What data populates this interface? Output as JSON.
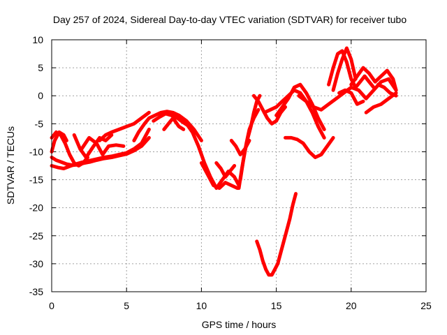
{
  "chart_data": {
    "type": "line",
    "title": "Day 257 of 2024, Sidereal Day-to-day VTEC variation (SDTVAR) for receiver tubo",
    "xlabel": "GPS time / hours",
    "ylabel": "SDTVAR / TECUs",
    "xlim": [
      0,
      25
    ],
    "ylim": [
      -35,
      10
    ],
    "xticks": [
      0,
      5,
      10,
      15,
      20,
      25
    ],
    "yticks": [
      -35,
      -30,
      -25,
      -20,
      -15,
      -10,
      -5,
      0,
      5,
      10
    ],
    "grid": true,
    "color": "#ff0000",
    "series": [
      {
        "x": [
          0.0,
          0.4,
          0.8,
          1.2,
          1.6,
          2.0,
          2.5,
          3.0,
          3.5,
          4.0,
          4.5,
          5.0,
          5.5,
          6.0,
          6.3,
          6.5
        ],
        "y": [
          -12.5,
          -12.8,
          -13.0,
          -12.6,
          -12.2,
          -11.9,
          -11.6,
          -11.3,
          -11.0,
          -10.8,
          -10.5,
          -10.2,
          -9.5,
          -8.5,
          -7.0,
          -6.0
        ]
      },
      {
        "x": [
          0.0,
          0.3,
          0.6,
          1.0,
          1.4,
          1.8,
          2.2,
          2.6,
          3.0,
          3.5,
          4.0,
          4.5,
          5.0,
          5.5,
          6.0,
          6.5
        ],
        "y": [
          -11.0,
          -11.5,
          -11.8,
          -12.2,
          -12.4,
          -12.3,
          -12.0,
          -11.8,
          -11.5,
          -11.2,
          -11.0,
          -10.7,
          -10.4,
          -9.8,
          -9.0,
          -7.5
        ]
      },
      {
        "x": [
          0.0,
          0.3,
          0.6,
          0.9,
          1.2,
          1.5,
          1.8,
          2.1,
          2.4
        ],
        "y": [
          -7.5,
          -6.5,
          -7.0,
          -8.5,
          -10.5,
          -12.0,
          -12.5,
          -12.0,
          -11.0
        ]
      },
      {
        "x": [
          0.0,
          0.2,
          0.5,
          0.8,
          1.0
        ],
        "y": [
          -10.0,
          -8.0,
          -6.5,
          -7.0,
          -8.0
        ]
      },
      {
        "x": [
          1.5,
          1.9,
          2.3,
          2.8,
          3.2,
          3.6,
          4.0
        ],
        "y": [
          -7.0,
          -9.5,
          -11.0,
          -9.0,
          -7.5,
          -8.0,
          -7.0
        ]
      },
      {
        "x": [
          2.0,
          2.5,
          3.0,
          3.4,
          3.8,
          4.3,
          4.8
        ],
        "y": [
          -9.5,
          -7.5,
          -8.5,
          -10.5,
          -9.0,
          -8.8,
          -9.0
        ]
      },
      {
        "x": [
          3.2,
          3.6,
          4.0,
          4.5,
          5.0,
          5.5,
          6.0,
          6.5
        ],
        "y": [
          -8.0,
          -7.0,
          -6.5,
          -6.0,
          -5.5,
          -5.0,
          -4.0,
          -3.0
        ]
      },
      {
        "x": [
          5.5,
          5.8,
          6.2,
          6.5,
          6.9,
          7.3,
          7.7,
          8.1,
          8.5,
          9.0,
          9.5,
          10.0
        ],
        "y": [
          -8.0,
          -6.5,
          -5.0,
          -4.0,
          -3.5,
          -3.0,
          -2.8,
          -3.0,
          -3.5,
          -4.5,
          -6.0,
          -8.0
        ]
      },
      {
        "x": [
          6.8,
          7.2,
          7.6,
          8.0,
          8.4,
          8.8,
          9.2
        ],
        "y": [
          -4.5,
          -3.8,
          -3.2,
          -3.5,
          -4.0,
          -4.8,
          -5.5
        ]
      },
      {
        "x": [
          7.5,
          7.8,
          8.1,
          8.5,
          8.8
        ],
        "y": [
          -6.0,
          -5.0,
          -4.0,
          -5.5,
          -6.0
        ]
      },
      {
        "x": [
          9.0,
          9.4,
          9.8,
          10.2,
          10.6,
          11.0,
          11.4,
          11.8,
          12.2,
          12.5
        ],
        "y": [
          -5.0,
          -6.5,
          -9.0,
          -12.0,
          -14.5,
          -16.5,
          -15.0,
          -13.5,
          -14.5,
          -16.0
        ]
      },
      {
        "x": [
          10.0,
          10.4,
          10.8,
          11.2,
          11.6,
          12.0,
          12.4
        ],
        "y": [
          -12.0,
          -14.0,
          -16.0,
          -16.5,
          -15.5,
          -16.0,
          -16.5
        ]
      },
      {
        "x": [
          11.0,
          11.3,
          11.6,
          11.9,
          12.2
        ],
        "y": [
          -12.0,
          -13.0,
          -14.5,
          -13.5,
          -12.5
        ]
      },
      {
        "x": [
          12.5,
          12.7,
          12.9,
          13.1,
          13.3,
          13.5,
          13.7,
          13.9
        ],
        "y": [
          -16.5,
          -13.0,
          -10.0,
          -7.5,
          -5.5,
          -3.0,
          -1.0,
          0.0
        ]
      },
      {
        "x": [
          12.6,
          12.8,
          13.0,
          13.2,
          13.5,
          13.8
        ],
        "y": [
          -15.0,
          -11.5,
          -8.5,
          -6.0,
          -4.0,
          -2.5
        ]
      },
      {
        "x": [
          12.0,
          12.3,
          12.6,
          12.9,
          13.2
        ],
        "y": [
          -8.0,
          -9.0,
          -10.5,
          -9.5,
          -8.0
        ]
      },
      {
        "x": [
          13.5,
          13.8,
          14.1,
          14.4,
          14.7,
          15.0,
          15.3,
          15.6
        ],
        "y": [
          0.0,
          -1.0,
          -2.5,
          -4.0,
          -5.0,
          -4.5,
          -3.0,
          -2.0
        ]
      },
      {
        "x": [
          14.2,
          14.6,
          15.0,
          15.4,
          15.8,
          16.2,
          16.6,
          17.0,
          17.4,
          17.8,
          18.2
        ],
        "y": [
          -3.0,
          -2.5,
          -2.0,
          -1.0,
          0.0,
          1.0,
          0.5,
          -1.0,
          -3.0,
          -5.5,
          -7.5
        ]
      },
      {
        "x": [
          15.0,
          15.4,
          15.8,
          16.2,
          16.6,
          17.0,
          17.4,
          17.8,
          18.2
        ],
        "y": [
          -3.5,
          -2.0,
          -0.5,
          1.5,
          2.0,
          0.5,
          -1.5,
          -4.0,
          -6.0
        ]
      },
      {
        "x": [
          16.5,
          17.0,
          17.5,
          18.0,
          18.5,
          19.0,
          19.5,
          20.0,
          20.5
        ],
        "y": [
          0.0,
          -1.0,
          -2.0,
          -2.5,
          -1.5,
          -0.5,
          0.5,
          1.5,
          1.0
        ]
      },
      {
        "x": [
          15.6,
          16.0,
          16.4,
          16.8,
          17.2,
          17.6,
          18.0,
          18.4,
          18.8
        ],
        "y": [
          -7.5,
          -7.5,
          -7.8,
          -8.5,
          -10.0,
          -11.0,
          -10.5,
          -9.0,
          -7.5
        ]
      },
      {
        "x": [
          13.7,
          13.9,
          14.1,
          14.3,
          14.5,
          14.7,
          14.9,
          15.1,
          15.3,
          15.5,
          15.7,
          15.9,
          16.1,
          16.3
        ],
        "y": [
          -26.0,
          -27.5,
          -29.5,
          -31.0,
          -32.0,
          -32.0,
          -31.0,
          -30.0,
          -28.0,
          -26.0,
          -24.0,
          -22.0,
          -19.5,
          -17.5
        ]
      },
      {
        "x": [
          18.5,
          18.8,
          19.1,
          19.4,
          19.7,
          20.0,
          20.3,
          20.6,
          20.9,
          21.2,
          21.5
        ],
        "y": [
          2.0,
          5.0,
          7.5,
          8.0,
          6.0,
          3.0,
          1.5,
          2.5,
          3.5,
          2.5,
          1.5
        ]
      },
      {
        "x": [
          18.8,
          19.1,
          19.4,
          19.7,
          20.0,
          20.3
        ],
        "y": [
          1.0,
          4.0,
          6.5,
          8.5,
          6.5,
          3.0
        ]
      },
      {
        "x": [
          20.0,
          20.4,
          20.8,
          21.2,
          21.6,
          22.0,
          22.4,
          22.8,
          23.0
        ],
        "y": [
          2.0,
          3.5,
          5.0,
          4.0,
          2.5,
          3.5,
          4.5,
          3.0,
          1.0
        ]
      },
      {
        "x": [
          20.5,
          21.0,
          21.5,
          22.0,
          22.5,
          23.0
        ],
        "y": [
          1.0,
          -0.5,
          1.0,
          2.5,
          3.0,
          1.0
        ]
      },
      {
        "x": [
          21.0,
          21.5,
          22.0,
          22.5,
          23.0
        ],
        "y": [
          -3.0,
          -2.0,
          -1.5,
          -0.5,
          0.5
        ]
      },
      {
        "x": [
          19.2,
          19.6,
          20.0,
          20.4,
          20.8
        ],
        "y": [
          0.5,
          1.0,
          0.5,
          -1.5,
          -1.0
        ]
      },
      {
        "x": [
          21.8,
          22.2,
          22.6,
          23.0
        ],
        "y": [
          2.0,
          1.5,
          0.5,
          0.0
        ]
      }
    ]
  }
}
